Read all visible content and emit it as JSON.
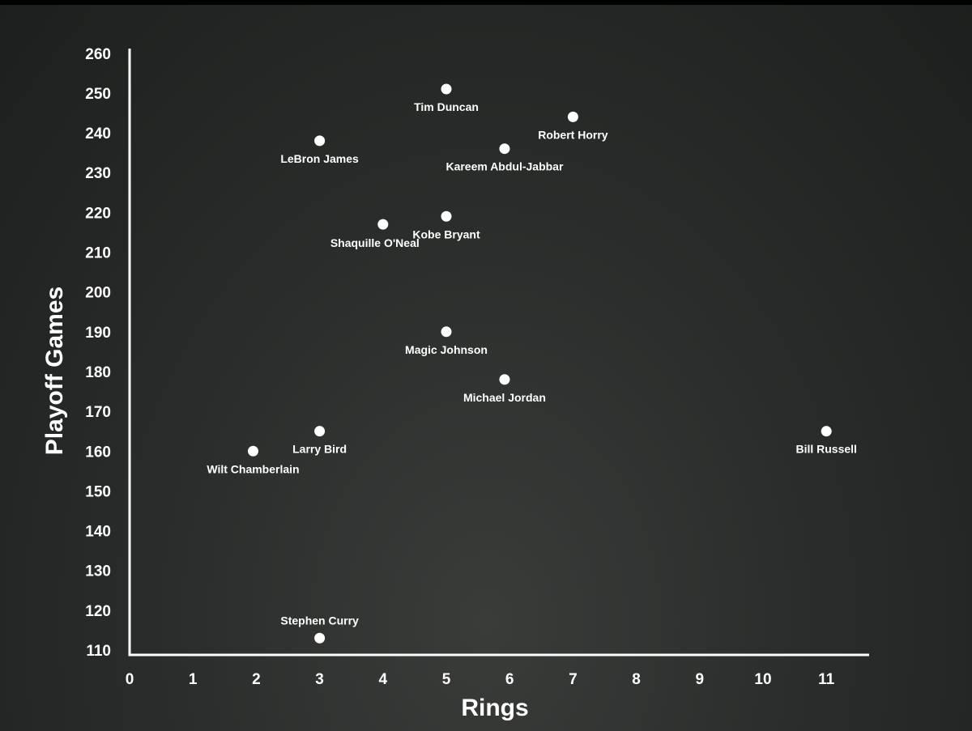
{
  "colors": {
    "background": "#2a2c2b",
    "foreground": "#ffffff"
  },
  "chart_data": {
    "type": "scatter",
    "title": "",
    "xlabel": "Rings",
    "ylabel": "Playoff Games",
    "xlim": [
      0,
      11.5
    ],
    "ylim": [
      108,
      260
    ],
    "x_ticks": [
      0,
      1,
      2,
      3,
      4,
      5,
      6,
      7,
      8,
      9,
      10,
      11
    ],
    "y_ticks": [
      110,
      120,
      130,
      140,
      150,
      160,
      170,
      180,
      190,
      200,
      210,
      220,
      230,
      240,
      250,
      260
    ],
    "grid": false,
    "legend": "none",
    "points": [
      {
        "label": "Tim Duncan",
        "x": 5,
        "y": 251,
        "label_pos": "below"
      },
      {
        "label": "Robert Horry",
        "x": 7,
        "y": 244,
        "label_pos": "below"
      },
      {
        "label": "LeBron James",
        "x": 3,
        "y": 238,
        "label_pos": "below"
      },
      {
        "label": "Kareem Abdul-Jabbar",
        "x": 5.92,
        "y": 236,
        "label_pos": "below"
      },
      {
        "label": "Kobe Bryant",
        "x": 5,
        "y": 219,
        "label_pos": "below"
      },
      {
        "label": "Shaquille O'Neal",
        "x": 4,
        "y": 217,
        "label_pos": "below-left"
      },
      {
        "label": "Magic Johnson",
        "x": 5,
        "y": 190,
        "label_pos": "below"
      },
      {
        "label": "Michael Jordan",
        "x": 5.92,
        "y": 178,
        "label_pos": "below"
      },
      {
        "label": "Larry Bird",
        "x": 3,
        "y": 165,
        "label_pos": "below"
      },
      {
        "label": "Bill Russell",
        "x": 11,
        "y": 165,
        "label_pos": "below"
      },
      {
        "label": "Wilt Chamberlain",
        "x": 1.95,
        "y": 160,
        "label_pos": "below"
      },
      {
        "label": "Stephen Curry",
        "x": 3,
        "y": 113,
        "label_pos": "above"
      }
    ]
  }
}
